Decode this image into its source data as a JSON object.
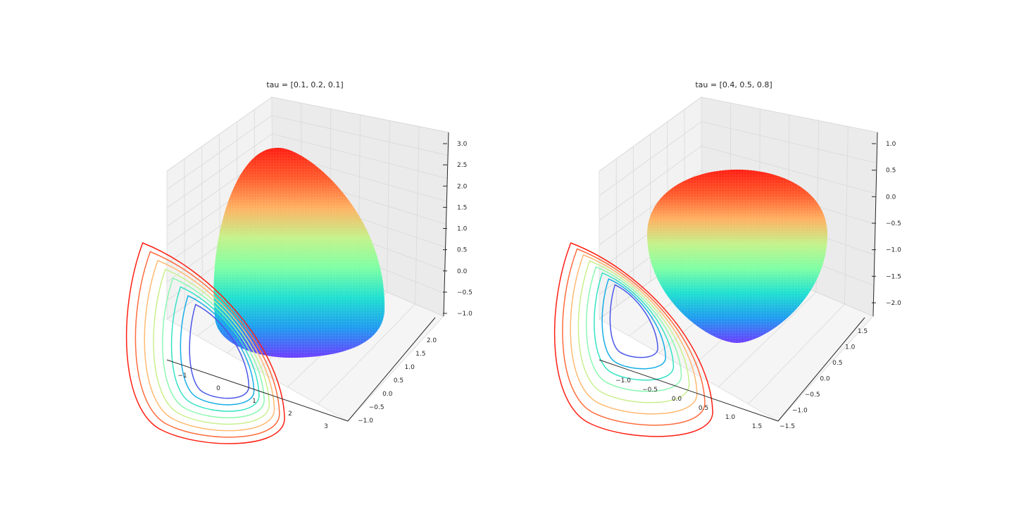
{
  "chart_data": [
    {
      "type": "surface3d",
      "title": "tau = [0.1, 0.2, 0.1]",
      "tau": [
        0.1,
        0.2,
        0.1
      ],
      "colormap": [
        "#6a3cff",
        "#1d9bf0",
        "#1de0d0",
        "#7dffa3",
        "#c3f28a",
        "#ffb060",
        "#ff5a2a",
        "#ff1c10"
      ],
      "surface": {
        "z_min": -1.0,
        "z_max": 3.0
      },
      "contours": {
        "plane": "xy",
        "levels": 8,
        "colors": [
          "#4a57e8",
          "#19aee6",
          "#34e3c4",
          "#8cf7b0",
          "#c9f08f",
          "#ffba72",
          "#ff6d3e",
          "#ff1f12"
        ]
      },
      "axes": {
        "x_ticks": [
          "−1",
          "0",
          "1",
          "2",
          "3"
        ],
        "y_ticks": [
          "−1.0",
          "−0.5",
          "0.0",
          "0.5",
          "1.0",
          "1.5",
          "2.0"
        ],
        "z_ticks": [
          "−1.0",
          "−0.5",
          "0.0",
          "0.5",
          "1.0",
          "1.5",
          "2.0",
          "2.5",
          "3.0"
        ],
        "grid": true
      }
    },
    {
      "type": "surface3d",
      "title": "tau = [0.4, 0.5, 0.8]",
      "tau": [
        0.4,
        0.5,
        0.8
      ],
      "colormap": [
        "#6a3cff",
        "#1d9bf0",
        "#1de0d0",
        "#7dffa3",
        "#c3f28a",
        "#ffb060",
        "#ff5a2a",
        "#ff1c10"
      ],
      "surface": {
        "z_min": -2.0,
        "z_max": 1.0
      },
      "contours": {
        "plane": "xy",
        "levels": 8,
        "colors": [
          "#4a57e8",
          "#19aee6",
          "#34e3c4",
          "#8cf7b0",
          "#c9f08f",
          "#ffba72",
          "#ff6d3e",
          "#ff1f12"
        ]
      },
      "axes": {
        "x_ticks": [
          "−1.0",
          "−0.5",
          "0.0",
          "0.5",
          "1.0",
          "1.5"
        ],
        "y_ticks": [
          "−1.5",
          "−1.0",
          "−0.5",
          "0.0",
          "0.5",
          "1.0",
          "1.5"
        ],
        "z_ticks": [
          "−2.0",
          "−1.5",
          "−1.0",
          "−0.5",
          "0.0",
          "0.5",
          "1.0"
        ],
        "grid": true
      }
    }
  ]
}
